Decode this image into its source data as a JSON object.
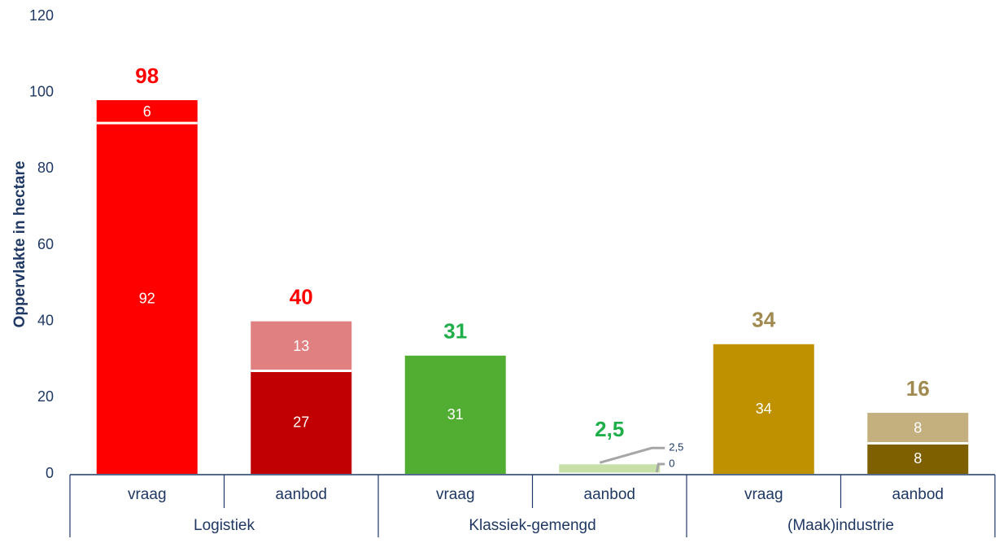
{
  "chart_data": {
    "type": "bar",
    "stacked": true,
    "ylabel": "Oppervlakte in hectare",
    "ylim": [
      0,
      120
    ],
    "yticks": [
      "0",
      "20",
      "40",
      "60",
      "80",
      "100",
      "120"
    ],
    "groups": [
      {
        "label": "Logistiek",
        "start": 0,
        "count": 2
      },
      {
        "label": "Klassiek-gemengd",
        "start": 2,
        "count": 2
      },
      {
        "label": "(Maak)industrie",
        "start": 4,
        "count": 2
      }
    ],
    "bars": [
      {
        "category": "vraag",
        "total": 98,
        "total_label": "98",
        "total_color": "#ff0000",
        "segments": [
          {
            "value": 92,
            "label": "92",
            "color": "#ff0000"
          },
          {
            "value": 6,
            "label": "6",
            "color": "#ff0000"
          }
        ]
      },
      {
        "category": "aanbod",
        "total": 40,
        "total_label": "40",
        "total_color": "#ff0000",
        "segments": [
          {
            "value": 27,
            "label": "27",
            "color": "#c00000"
          },
          {
            "value": 13,
            "label": "13",
            "color": "#e08080"
          }
        ]
      },
      {
        "category": "vraag",
        "total": 31,
        "total_label": "31",
        "total_color": "#1fae4a",
        "segments": [
          {
            "value": 31,
            "label": "31",
            "color": "#52ae32"
          }
        ]
      },
      {
        "category": "aanbod",
        "total": 2.5,
        "total_label": "2,5",
        "total_color": "#1fae4a",
        "segments": [
          {
            "value": 0,
            "label": "0",
            "color": "#52ae32",
            "callout": true
          },
          {
            "value": 2.5,
            "label": "2,5",
            "color": "#c6e0a8",
            "callout": true
          }
        ]
      },
      {
        "category": "vraag",
        "total": 34,
        "total_label": "34",
        "total_color": "#a08a50",
        "segments": [
          {
            "value": 34,
            "label": "34",
            "color": "#bf9000"
          }
        ]
      },
      {
        "category": "aanbod",
        "total": 16,
        "total_label": "16",
        "total_color": "#a08a50",
        "segments": [
          {
            "value": 8,
            "label": "8",
            "color": "#7f6000"
          },
          {
            "value": 8,
            "label": "8",
            "color": "#c4b07e"
          }
        ]
      }
    ]
  }
}
